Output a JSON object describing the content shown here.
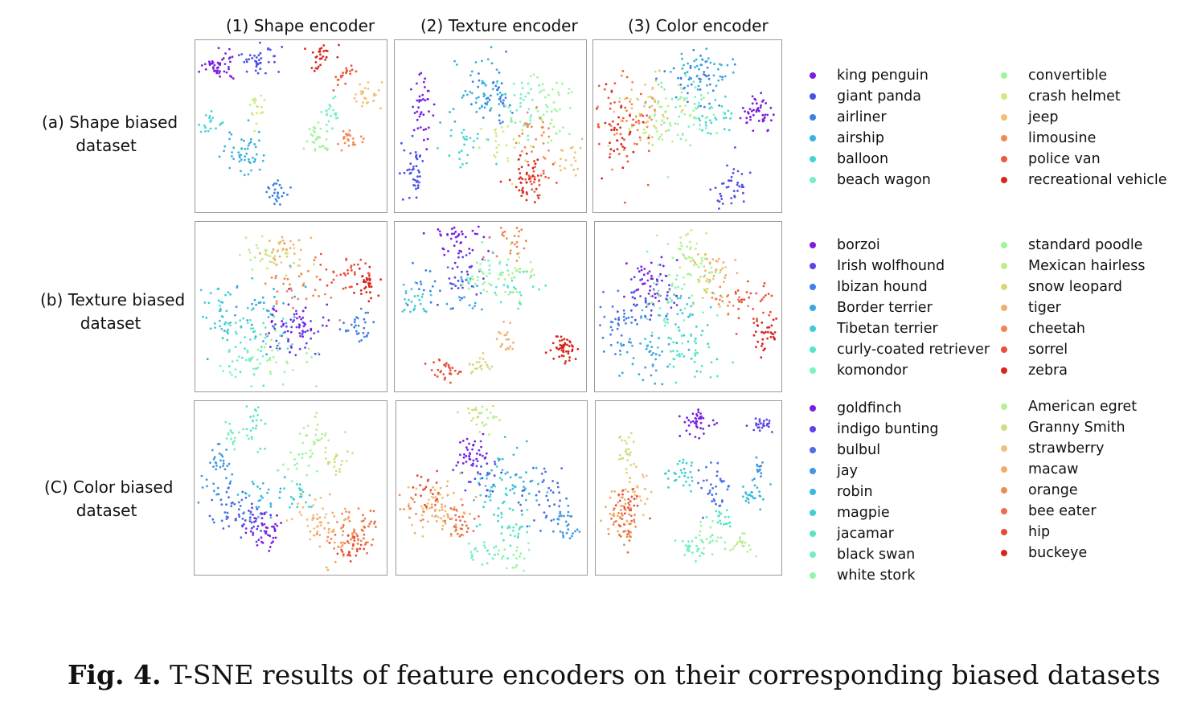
{
  "columns": [
    "(1) Shape encoder",
    "(2) Texture encoder",
    "(3) Color encoder"
  ],
  "rows": [
    {
      "line1": "(a) Shape biased",
      "line2": "dataset"
    },
    {
      "line1": "(b) Texture biased",
      "line2": "dataset"
    },
    {
      "line1": "(C) Color biased",
      "line2": "dataset"
    }
  ],
  "legends": [
    {
      "left": [
        {
          "label": "king penguin",
          "color": "#7a1fe0"
        },
        {
          "label": "giant panda",
          "color": "#4b4fe6"
        },
        {
          "label": "airliner",
          "color": "#3f7fe6"
        },
        {
          "label": "airship",
          "color": "#38b2dc"
        },
        {
          "label": "balloon",
          "color": "#3fd6cf"
        },
        {
          "label": "beach wagon",
          "color": "#74f0c8"
        }
      ],
      "right": [
        {
          "label": "convertible",
          "color": "#9ef59a"
        },
        {
          "label": "crash helmet",
          "color": "#c9ec7e"
        },
        {
          "label": "jeep",
          "color": "#f0c070"
        },
        {
          "label": "limousine",
          "color": "#f28a52"
        },
        {
          "label": "police van",
          "color": "#ec5a3a"
        },
        {
          "label": "recreational vehicle",
          "color": "#d8261e"
        }
      ]
    },
    {
      "left": [
        {
          "label": "borzoi",
          "color": "#7a1fe0"
        },
        {
          "label": "Irish wolfhound",
          "color": "#5a45e8"
        },
        {
          "label": "Ibizan hound",
          "color": "#3f7fe6"
        },
        {
          "label": "Border terrier",
          "color": "#38a8df"
        },
        {
          "label": "Tibetan terrier",
          "color": "#3fcad6"
        },
        {
          "label": "curly-coated retriever",
          "color": "#58e4cb"
        },
        {
          "label": "komondor",
          "color": "#7ef2c0"
        }
      ],
      "right": [
        {
          "label": "standard poodle",
          "color": "#9ef59a"
        },
        {
          "label": "Mexican hairless",
          "color": "#bdee86"
        },
        {
          "label": "snow leopard",
          "color": "#d9d67a"
        },
        {
          "label": "tiger",
          "color": "#f2b070"
        },
        {
          "label": "cheetah",
          "color": "#ef8450"
        },
        {
          "label": "sorrel",
          "color": "#e8503a"
        },
        {
          "label": "zebra",
          "color": "#d8261e"
        }
      ]
    },
    {
      "left": [
        {
          "label": "goldfinch",
          "color": "#7a1fe0"
        },
        {
          "label": "indigo bunting",
          "color": "#5a45e8"
        },
        {
          "label": "bulbul",
          "color": "#4a6fe6"
        },
        {
          "label": "jay",
          "color": "#3f98e0"
        },
        {
          "label": "robin",
          "color": "#38b8dc"
        },
        {
          "label": "magpie",
          "color": "#3fd0d2"
        },
        {
          "label": "jacamar",
          "color": "#55e6c8"
        },
        {
          "label": "black swan",
          "color": "#74f0bc"
        },
        {
          "label": "white stork",
          "color": "#94f5a8"
        }
      ],
      "right": [
        {
          "label": "American egret",
          "color": "#b5ef92"
        },
        {
          "label": "Granny Smith",
          "color": "#d3dc82"
        },
        {
          "label": "strawberry",
          "color": "#eec07c"
        },
        {
          "label": "macaw",
          "color": "#f2ac68"
        },
        {
          "label": "orange",
          "color": "#ef8a52"
        },
        {
          "label": "bee eater",
          "color": "#ea6e48"
        },
        {
          "label": "hip",
          "color": "#e54c36"
        },
        {
          "label": "buckeye",
          "color": "#d8261e"
        }
      ]
    }
  ],
  "caption": {
    "bold": "Fig. 4.",
    "text": " T-SNE results of feature encoders on their corresponding biased datasets"
  }
}
